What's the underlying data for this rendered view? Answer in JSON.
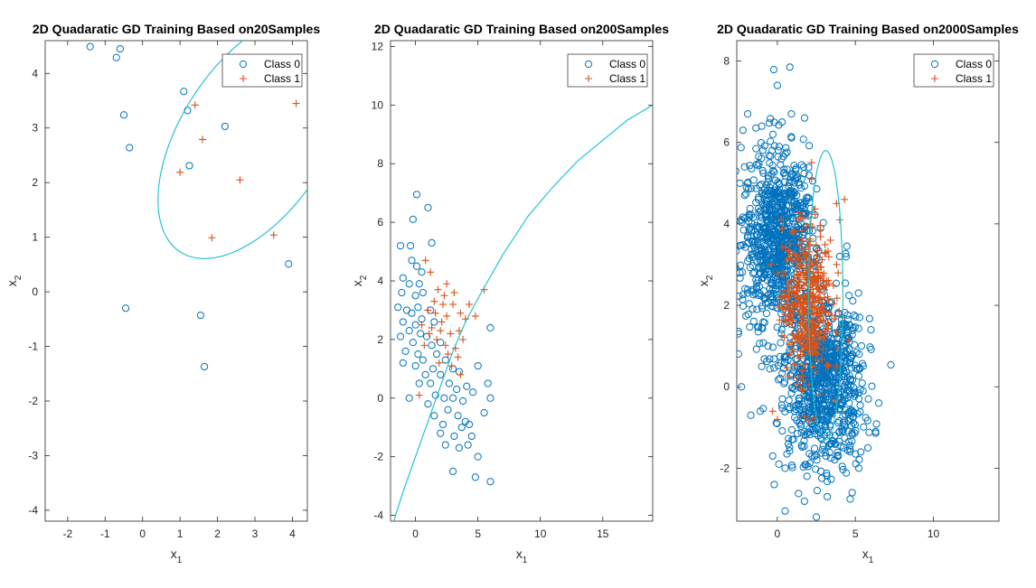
{
  "colors": {
    "class0": "#0072bd",
    "class1": "#d95319",
    "boundary": "#17becf",
    "axis": "#262626"
  },
  "chart_data": [
    {
      "type": "scatter",
      "title": "2D Quadaratic GD Training Based on20Samples",
      "xlabel": "x",
      "xlabel_sub": "1",
      "ylabel": "x",
      "ylabel_sub": "2",
      "xlim": [
        -2.6,
        4.4
      ],
      "ylim": [
        -4.2,
        4.6
      ],
      "xticks": [
        -2,
        -1,
        0,
        1,
        2,
        3,
        4
      ],
      "yticks": [
        -4,
        -3,
        -2,
        -1,
        0,
        1,
        2,
        3,
        4
      ],
      "legend": {
        "position": "top-right",
        "entries": [
          "Class 0",
          "Class 1"
        ]
      },
      "series": [
        {
          "name": "Class 0",
          "marker": "circle",
          "points": [
            [
              -1.4,
              4.49
            ],
            [
              -0.6,
              4.45
            ],
            [
              -0.7,
              4.29
            ],
            [
              1.1,
              3.67
            ],
            [
              1.2,
              3.32
            ],
            [
              -0.5,
              3.24
            ],
            [
              2.2,
              3.03
            ],
            [
              -0.35,
              2.64
            ],
            [
              1.25,
              2.31
            ],
            [
              3.9,
              0.51
            ],
            [
              -0.45,
              -0.3
            ],
            [
              1.55,
              -0.43
            ],
            [
              1.65,
              -1.37
            ]
          ]
        },
        {
          "name": "Class 1",
          "marker": "plus",
          "points": [
            [
              4.1,
              3.45
            ],
            [
              1.4,
              3.42
            ],
            [
              1.6,
              2.79
            ],
            [
              1.0,
              2.19
            ],
            [
              2.6,
              2.05
            ],
            [
              1.85,
              0.99
            ],
            [
              3.5,
              1.04
            ]
          ]
        }
      ],
      "boundary": {
        "type": "ellipse",
        "cx": 3.0,
        "cy": 2.85,
        "rx": 3.0,
        "ry": 1.65,
        "angle": 0.65
      }
    },
    {
      "type": "scatter",
      "title": "2D Quadaratic GD Training Based on200Samples",
      "xlabel": "x",
      "xlabel_sub": "1",
      "ylabel": "x",
      "ylabel_sub": "2",
      "xlim": [
        -2,
        19
      ],
      "ylim": [
        -4.2,
        12.2
      ],
      "xticks": [
        0,
        5,
        10,
        15
      ],
      "yticks": [
        -4,
        -2,
        0,
        2,
        4,
        6,
        8,
        10,
        12
      ],
      "legend": {
        "position": "top-right",
        "entries": [
          "Class 0",
          "Class 1"
        ]
      },
      "series": [
        {
          "name": "Class 0",
          "marker": "circle",
          "points": [
            [
              0.1,
              6.95
            ],
            [
              -0.2,
              6.1
            ],
            [
              1.0,
              6.5
            ],
            [
              -1.2,
              5.2
            ],
            [
              -0.4,
              5.2
            ],
            [
              1.3,
              5.3
            ],
            [
              -0.3,
              4.7
            ],
            [
              0.1,
              4.5
            ],
            [
              0.5,
              4.3
            ],
            [
              -1.0,
              4.1
            ],
            [
              -0.5,
              3.9
            ],
            [
              0.3,
              3.9
            ],
            [
              -1.1,
              3.6
            ],
            [
              0.0,
              3.5
            ],
            [
              0.6,
              3.6
            ],
            [
              -1.4,
              3.1
            ],
            [
              -0.7,
              3.0
            ],
            [
              0.2,
              3.1
            ],
            [
              1.2,
              3.0
            ],
            [
              -0.3,
              2.9
            ],
            [
              0.5,
              2.7
            ],
            [
              -1.0,
              2.6
            ],
            [
              0.0,
              2.5
            ],
            [
              1.5,
              2.6
            ],
            [
              -0.5,
              2.3
            ],
            [
              0.4,
              2.2
            ],
            [
              -1.2,
              2.1
            ],
            [
              0.9,
              2.1
            ],
            [
              -0.2,
              1.9
            ],
            [
              1.3,
              1.8
            ],
            [
              2.0,
              1.9
            ],
            [
              -0.8,
              1.6
            ],
            [
              0.2,
              1.5
            ],
            [
              1.7,
              1.5
            ],
            [
              0.6,
              1.3
            ],
            [
              -1.0,
              1.2
            ],
            [
              2.4,
              1.3
            ],
            [
              0.0,
              1.1
            ],
            [
              1.4,
              1.0
            ],
            [
              3.0,
              1.0
            ],
            [
              0.8,
              0.8
            ],
            [
              2.0,
              0.8
            ],
            [
              3.5,
              0.9
            ],
            [
              1.2,
              0.5
            ],
            [
              2.7,
              0.5
            ],
            [
              3.3,
              0.3
            ],
            [
              4.1,
              0.4
            ],
            [
              1.6,
              0.1
            ],
            [
              2.3,
              0.0
            ],
            [
              3.0,
              0.0
            ],
            [
              3.8,
              -0.1
            ],
            [
              1.0,
              -0.2
            ],
            [
              2.6,
              -0.4
            ],
            [
              3.4,
              -0.6
            ],
            [
              4.3,
              -0.9
            ],
            [
              2.0,
              -1.2
            ],
            [
              3.1,
              -1.3
            ],
            [
              4.5,
              -1.3
            ],
            [
              2.4,
              -1.6
            ],
            [
              3.5,
              -1.7
            ],
            [
              5.0,
              -2.0
            ],
            [
              3.0,
              -2.5
            ],
            [
              4.8,
              -2.7
            ],
            [
              6.0,
              -2.85
            ],
            [
              5.5,
              -0.5
            ],
            [
              6.0,
              0.0
            ],
            [
              5.8,
              0.5
            ],
            [
              5.0,
              1.1
            ],
            [
              6.0,
              2.4
            ],
            [
              4.0,
              -0.8
            ],
            [
              4.6,
              0.2
            ],
            [
              2.2,
              -0.9
            ],
            [
              1.5,
              -0.6
            ],
            [
              3.7,
              -1.0
            ],
            [
              0.3,
              0.5
            ],
            [
              -0.5,
              0.0
            ],
            [
              4.2,
              -1.6
            ]
          ]
        },
        {
          "name": "Class 1",
          "marker": "plus",
          "points": [
            [
              0.8,
              4.7
            ],
            [
              1.2,
              4.3
            ],
            [
              2.5,
              3.9
            ],
            [
              3.1,
              3.6
            ],
            [
              1.8,
              3.7
            ],
            [
              2.2,
              3.2
            ],
            [
              3.0,
              3.2
            ],
            [
              1.0,
              3.0
            ],
            [
              1.6,
              2.9
            ],
            [
              2.5,
              2.8
            ],
            [
              3.6,
              2.9
            ],
            [
              4.0,
              2.7
            ],
            [
              5.5,
              3.7
            ],
            [
              4.3,
              3.2
            ],
            [
              0.5,
              2.5
            ],
            [
              1.3,
              2.4
            ],
            [
              2.0,
              2.3
            ],
            [
              2.8,
              2.2
            ],
            [
              3.5,
              2.3
            ],
            [
              1.7,
              2.0
            ],
            [
              2.4,
              1.8
            ],
            [
              3.2,
              1.7
            ],
            [
              2.6,
              1.5
            ],
            [
              3.4,
              1.4
            ],
            [
              1.9,
              1.2
            ],
            [
              2.9,
              1.1
            ],
            [
              3.6,
              0.8
            ],
            [
              0.7,
              1.8
            ],
            [
              2.1,
              2.6
            ],
            [
              3.8,
              2.0
            ],
            [
              1.1,
              2.2
            ],
            [
              0.3,
              0.1
            ],
            [
              4.8,
              2.8
            ],
            [
              2.3,
              3.5
            ],
            [
              1.5,
              3.3
            ]
          ]
        }
      ],
      "boundary": {
        "type": "curve",
        "points": [
          [
            -1.75,
            -4.2
          ],
          [
            -1.0,
            -3.2
          ],
          [
            0,
            -2.0
          ],
          [
            1,
            -0.8
          ],
          [
            2,
            0.4
          ],
          [
            3,
            1.6
          ],
          [
            4,
            2.6
          ],
          [
            5,
            3.4
          ],
          [
            7,
            4.9
          ],
          [
            9,
            6.2
          ],
          [
            11,
            7.2
          ],
          [
            13,
            8.1
          ],
          [
            15,
            8.8
          ],
          [
            17,
            9.5
          ],
          [
            19,
            10.0
          ]
        ]
      }
    },
    {
      "type": "scatter",
      "title": "2D Quadaratic GD Training Based on2000Samples",
      "xlabel": "x",
      "xlabel_sub": "1",
      "ylabel": "x",
      "ylabel_sub": "2",
      "xlim": [
        -2.6,
        14.2
      ],
      "ylim": [
        -3.3,
        8.5
      ],
      "xticks": [
        0,
        5,
        10
      ],
      "yticks": [
        -2,
        0,
        2,
        4,
        6,
        8
      ],
      "legend": {
        "position": "top-right",
        "entries": [
          "Class 0",
          "Class 1"
        ]
      },
      "series": [
        {
          "name": "Class 0",
          "marker": "circle",
          "n": 1700,
          "points": [
            [
              0.8,
              7.85
            ],
            [
              0,
              7.4
            ],
            [
              0.9,
              6.7
            ],
            [
              -1.9,
              6.7
            ],
            [
              -2.2,
              6.3
            ],
            [
              -1.0,
              6.4
            ],
            [
              0.3,
              6.5
            ],
            [
              -2.1,
              5.4
            ],
            [
              -2.4,
              5.0
            ],
            [
              6.0,
              1.4
            ],
            [
              6.5,
              -0.4
            ],
            [
              6.3,
              -1.1
            ],
            [
              5.8,
              -1.5
            ],
            [
              2.5,
              -3.2
            ],
            [
              0.5,
              -3.05
            ],
            [
              -0.2,
              -2.4
            ],
            [
              0.1,
              -1.9
            ],
            [
              -1.1,
              -0.6
            ],
            [
              -1.7,
              -0.7
            ],
            [
              -2.3,
              0.0
            ],
            [
              -2.5,
              1.3
            ],
            [
              -2.4,
              2.8
            ],
            [
              -2.3,
              4.1
            ],
            [
              5.2,
              2.3
            ],
            [
              4.0,
              3.2
            ],
            [
              3.2,
              -2.7
            ],
            [
              4.8,
              -2.6
            ],
            [
              1.9,
              -2.2
            ],
            [
              0.5,
              -2.0
            ],
            [
              -0.3,
              -1.7
            ],
            [
              0.7,
              -1.4
            ],
            [
              -1.0,
              0.5
            ],
            [
              -0.6,
              1.0
            ]
          ]
        },
        {
          "name": "Class 1",
          "marker": "plus",
          "n": 430,
          "points": [
            [
              4.3,
              4.6
            ],
            [
              3.8,
              4.5
            ],
            [
              2.2,
              5.1
            ],
            [
              4.0,
              4.1
            ],
            [
              3.4,
              3.6
            ],
            [
              3.8,
              3.0
            ],
            [
              -0.3,
              -0.6
            ],
            [
              0.0,
              -0.8
            ],
            [
              2.7,
              -0.2
            ],
            [
              -0.4,
              3.0
            ],
            [
              1.0,
              2.0
            ]
          ]
        }
      ],
      "boundary": {
        "type": "ellipse",
        "cx": 3.1,
        "cy": 2.25,
        "rx": 1.1,
        "ry": 3.55,
        "angle": 0.0
      }
    }
  ]
}
